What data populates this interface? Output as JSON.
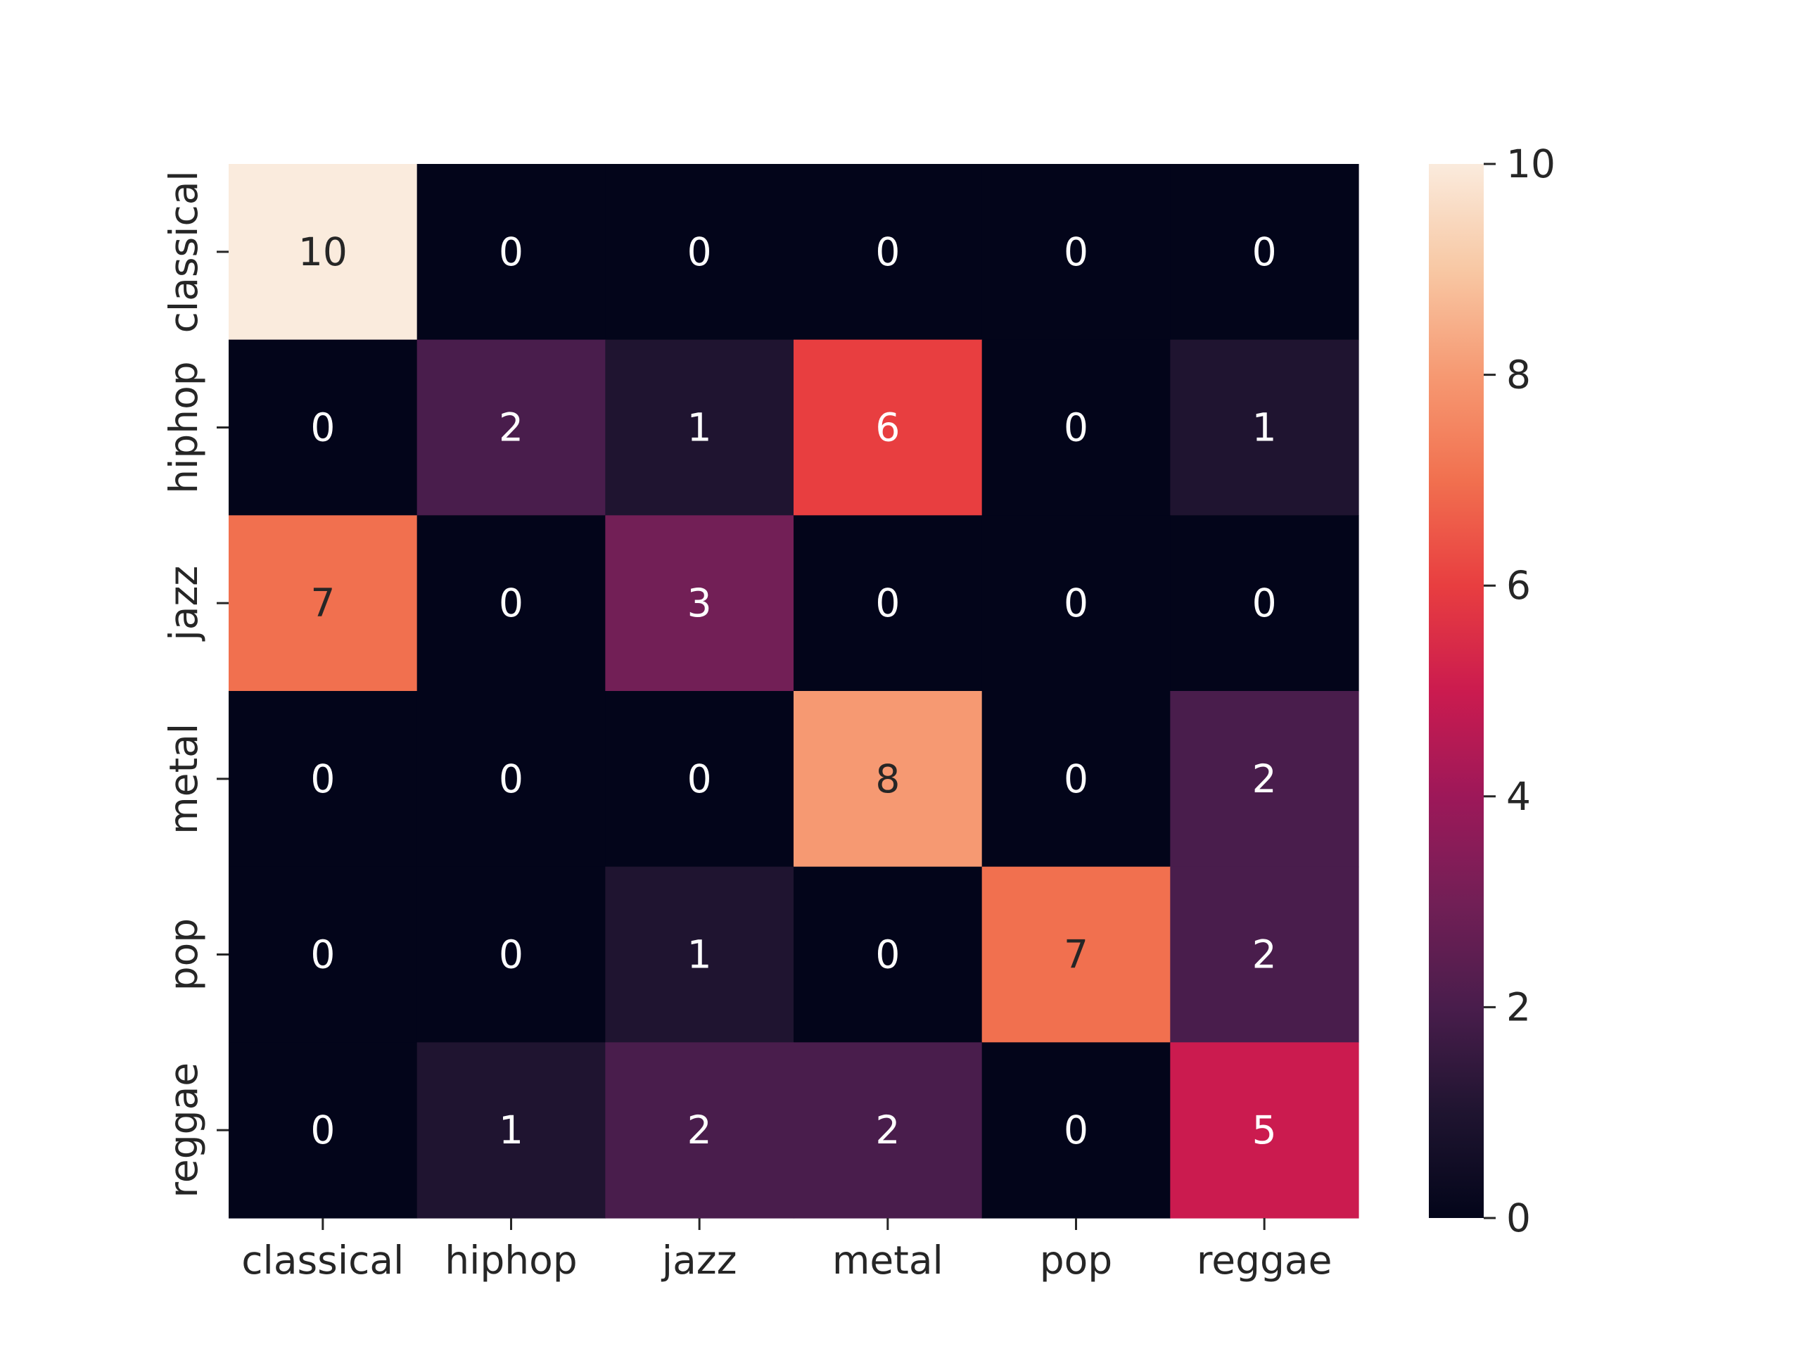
{
  "chart_data": {
    "type": "heatmap",
    "title": "",
    "xlabel": "",
    "ylabel": "",
    "x_categories": [
      "classical",
      "hiphop",
      "jazz",
      "metal",
      "pop",
      "reggae"
    ],
    "y_categories": [
      "classical",
      "hiphop",
      "jazz",
      "metal",
      "pop",
      "reggae"
    ],
    "values": [
      [
        10,
        0,
        0,
        0,
        0,
        0
      ],
      [
        0,
        2,
        1,
        6,
        0,
        1
      ],
      [
        7,
        0,
        3,
        0,
        0,
        0
      ],
      [
        0,
        0,
        0,
        8,
        0,
        2
      ],
      [
        0,
        0,
        1,
        0,
        7,
        2
      ],
      [
        0,
        1,
        2,
        2,
        0,
        5
      ]
    ],
    "colorbar": {
      "range": [
        0,
        10
      ],
      "ticks": [
        0,
        2,
        4,
        6,
        8,
        10
      ],
      "colormap": "rocket",
      "low_color": "#03051a",
      "high_color": "#faebdd"
    },
    "annotations": true,
    "grid": false
  }
}
